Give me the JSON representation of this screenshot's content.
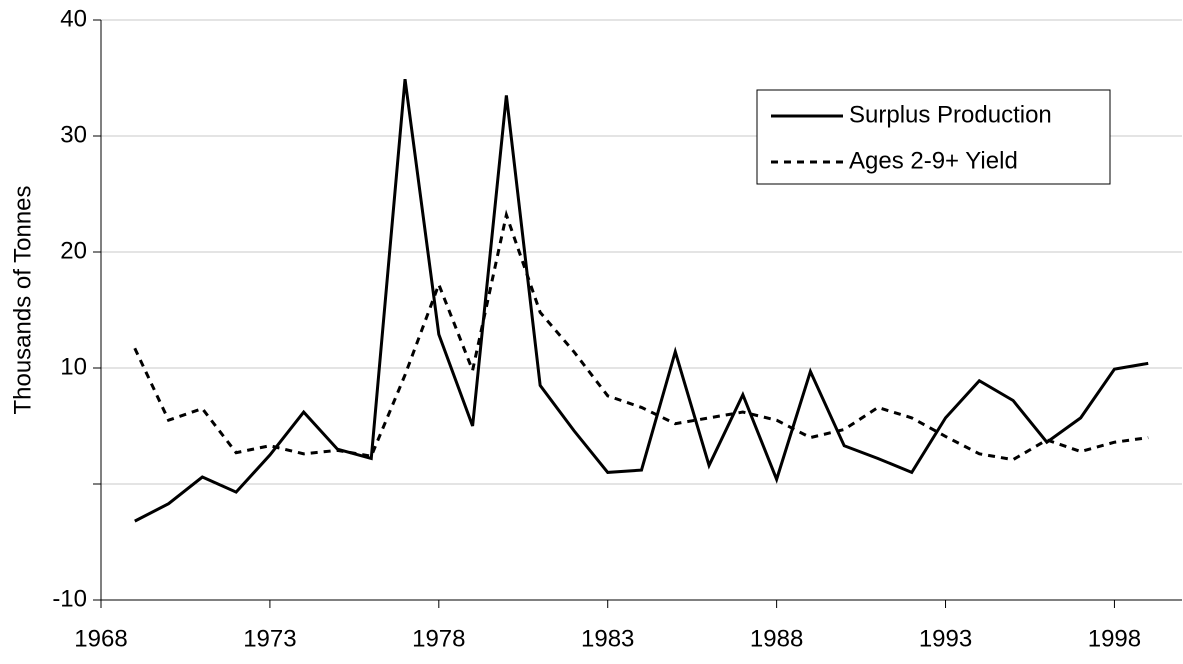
{
  "chart_data": {
    "type": "line",
    "y_label": "Thousands of Tonnes",
    "x": [
      1969,
      1970,
      1971,
      1972,
      1973,
      1974,
      1975,
      1976,
      1977,
      1978,
      1979,
      1980,
      1981,
      1982,
      1983,
      1984,
      1985,
      1986,
      1987,
      1988,
      1989,
      1990,
      1991,
      1992,
      1993,
      1994,
      1995,
      1996,
      1997,
      1998,
      1999
    ],
    "series": [
      {
        "name": "Surplus Production",
        "color": "#000000",
        "linestyle": "solid",
        "values": [
          -3.2,
          -1.7,
          0.6,
          -0.7,
          2.5,
          6.2,
          3.0,
          2.2,
          34.9,
          12.9,
          5.0,
          33.5,
          8.5,
          4.6,
          1.0,
          1.2,
          11.4,
          1.6,
          7.7,
          0.4,
          9.7,
          3.3,
          2.2,
          1.0,
          5.7,
          8.9,
          7.2,
          3.6,
          5.7,
          9.9,
          10.4
        ]
      },
      {
        "name": "Ages 2-9+ Yield",
        "color": "#000000",
        "linestyle": "dashed",
        "values": [
          11.7,
          5.5,
          6.5,
          2.7,
          3.3,
          2.6,
          2.9,
          2.4,
          9.4,
          17.2,
          9.8,
          23.2,
          14.8,
          11.4,
          7.6,
          6.6,
          5.2,
          5.7,
          6.2,
          5.5,
          4.0,
          4.7,
          6.6,
          5.7,
          4.1,
          2.6,
          2.1,
          3.8,
          2.8,
          3.6,
          4.0
        ]
      }
    ],
    "xlim": [
      1968,
      2000
    ],
    "xticks": [
      1968,
      1973,
      1978,
      1983,
      1988,
      1993,
      1998
    ],
    "ylim": [
      -10,
      40
    ],
    "yticks": [
      -10,
      {
        "value": 0,
        "label": null
      },
      10,
      20,
      30,
      40
    ],
    "grid": true,
    "legend": "upper right"
  }
}
